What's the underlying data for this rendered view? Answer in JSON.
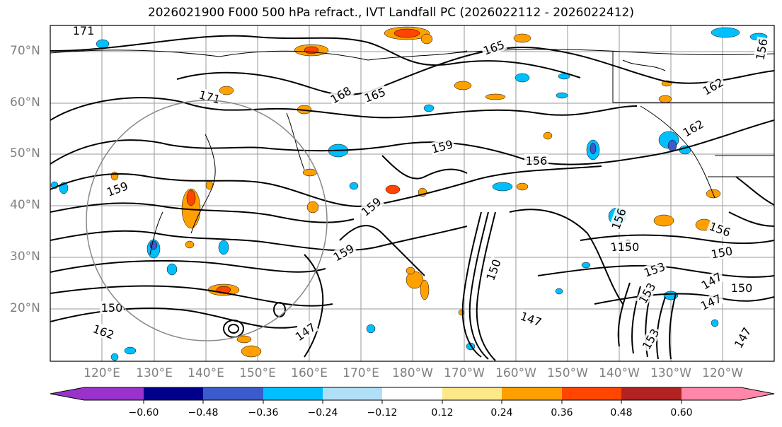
{
  "figure": {
    "title": "2026021900 F000 500 hPa refract., IVT Landfall PC (2026022112 - 2026022412)"
  },
  "map": {
    "projection": "equirectangular (Pacific-centered)",
    "lon_range_label": [
      "120°E",
      "120°W"
    ],
    "lat_labels": [
      "70°N",
      "60°N",
      "50°N",
      "40°N",
      "30°N",
      "20°N"
    ],
    "lon_labels": [
      "120°E",
      "130°E",
      "140°E",
      "150°E",
      "160°E",
      "170°E",
      "180°W",
      "170°W",
      "160°W",
      "150°W",
      "140°W",
      "130°W",
      "120°W"
    ],
    "gridlines": true,
    "contour_color": "#000000",
    "contour_labels": [
      "171",
      "171",
      "168",
      "165",
      "165",
      "162",
      "162",
      "159",
      "159",
      "159",
      "159",
      "156",
      "156",
      "156",
      "156",
      "153",
      "153",
      "153",
      "150",
      "150",
      "150",
      "150",
      "150",
      "147",
      "147",
      "147",
      "147",
      "147",
      "153",
      "162"
    ]
  },
  "colorbar": {
    "ticks": [
      "−0.60",
      "−0.48",
      "−0.36",
      "−0.24",
      "−0.12",
      "0.12",
      "0.24",
      "0.36",
      "0.48",
      "0.60"
    ],
    "colors": [
      "#9933cc",
      "#00008b",
      "#3a5bcb",
      "#00bfff",
      "#b0e0f8",
      "#ffffff",
      "#ffe88a",
      "#ffa000",
      "#ff4500",
      "#b22222",
      "#ff88aa"
    ],
    "extend": "both"
  }
}
